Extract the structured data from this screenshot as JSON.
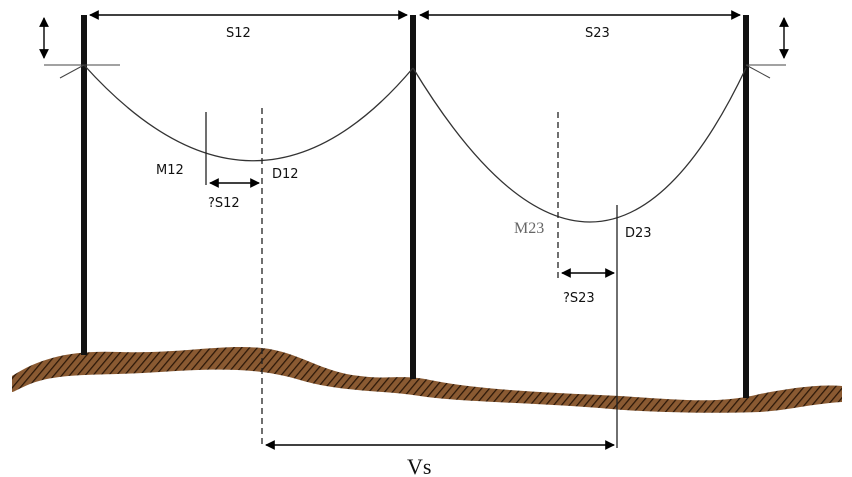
{
  "labels": {
    "span_12": "S12",
    "span_23": "S23",
    "mid_12": "M12",
    "sag_12": "D12",
    "offset_12": "?S12",
    "mid_23": "M23",
    "sag_23": "D23",
    "offset_23": "?S23",
    "weight_span": "Vs"
  }
}
